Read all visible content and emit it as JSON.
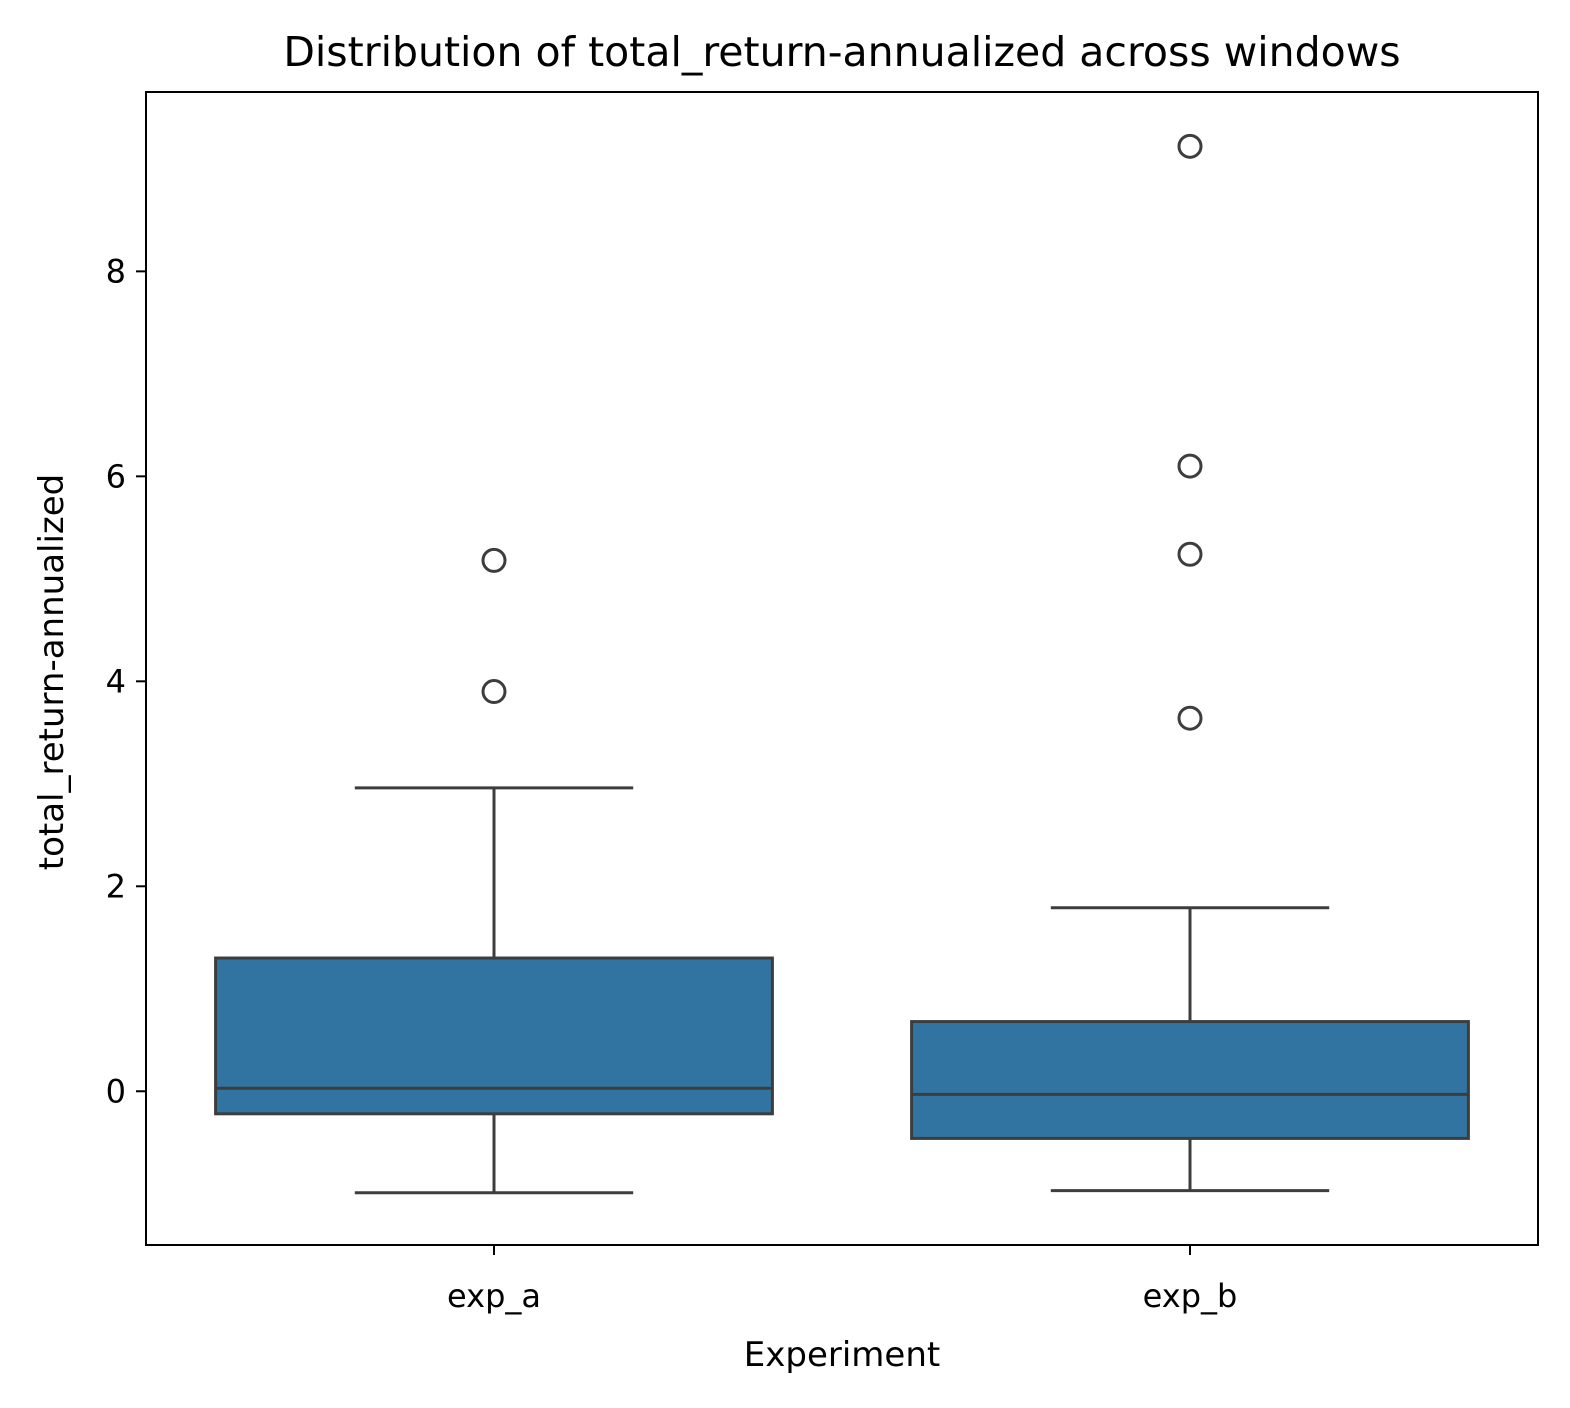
{
  "chart_data": {
    "type": "box",
    "title": "Distribution of total_return-annualized across windows",
    "xlabel": "Experiment",
    "ylabel": "total_return-annualized",
    "ylim": [
      -1.5,
      9.75
    ],
    "yticks": [
      0,
      2,
      4,
      6,
      8
    ],
    "grid": false,
    "categories": [
      "exp_a",
      "exp_b"
    ],
    "boxes": [
      {
        "category": "exp_a",
        "whisker_low": -0.99,
        "q1": -0.22,
        "median": 0.03,
        "q3": 1.3,
        "whisker_high": 2.96,
        "outliers": [
          3.9,
          5.18
        ]
      },
      {
        "category": "exp_b",
        "whisker_low": -0.97,
        "q1": -0.46,
        "median": -0.03,
        "q3": 0.68,
        "whisker_high": 1.79,
        "outliers": [
          3.64,
          5.24,
          6.1,
          9.22
        ]
      }
    ],
    "colors": {
      "box_fill": "#3274a1",
      "line": "#3d3d3d",
      "frame": "#000000"
    }
  }
}
